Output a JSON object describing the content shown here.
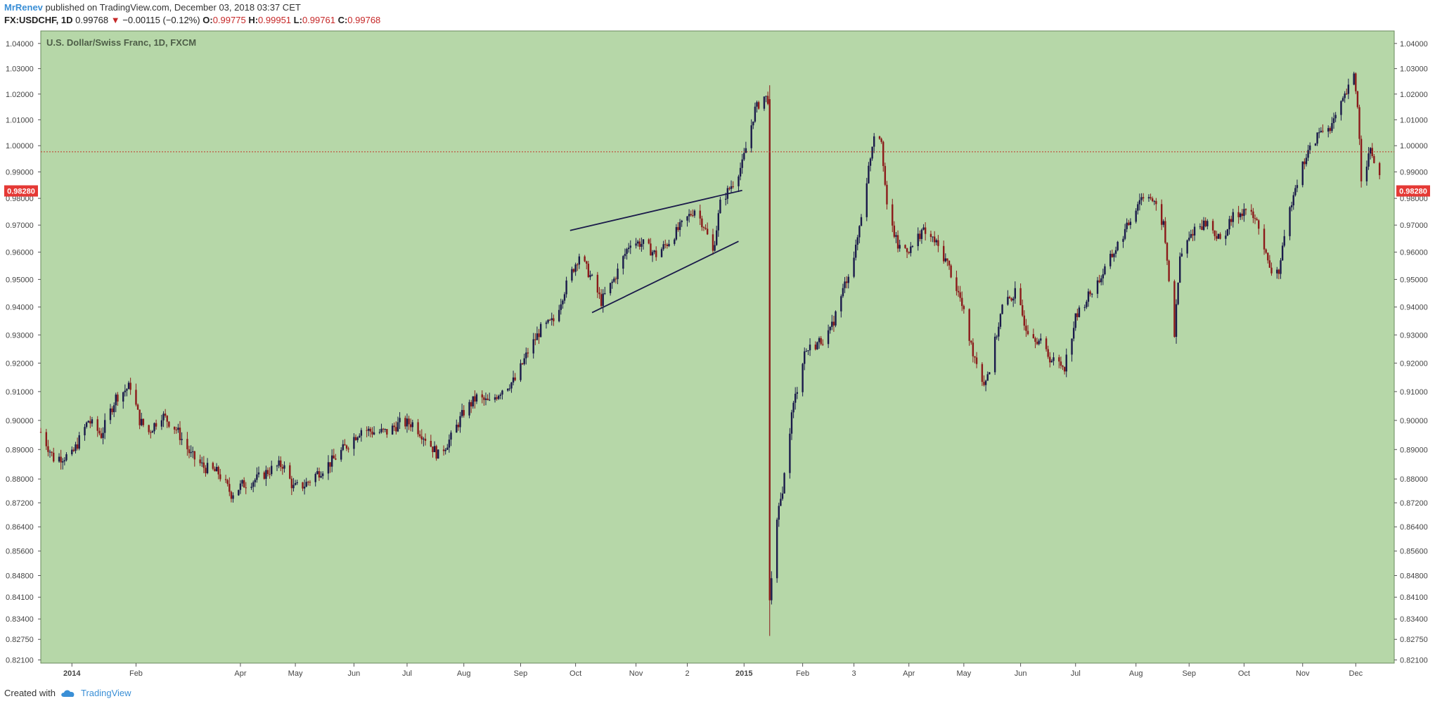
{
  "header": {
    "author": "MrRenev",
    "published": "published on TradingView.com, December 03, 2018 03:37 CET",
    "symbol": "FX:USDCHF, 1D",
    "last": "0.99768",
    "change": "−0.00115 (−0.12%)",
    "o_label": "O:",
    "o": "0.99775",
    "h_label": "H:",
    "h": "0.99951",
    "l_label": "L:",
    "l": "0.99761",
    "c_label": "C:",
    "c": "0.99768"
  },
  "footer": {
    "created_with": "Created with",
    "brand": "TradingView"
  },
  "colors": {
    "bg": "#b6d7a8",
    "up": "#1a1a4a",
    "down": "#8b1a1a",
    "priceline": "#c0392b",
    "badge": "#e53935"
  },
  "chart_data": {
    "type": "candlestick",
    "title": "U.S. Dollar/Swiss Franc, 1D, FXCM",
    "price_badge": "0.98280",
    "price_line": 0.99768,
    "y_ticks": [
      "0.82100",
      "0.82750",
      "0.83400",
      "0.84100",
      "0.84800",
      "0.85600",
      "0.86400",
      "0.87200",
      "0.88000",
      "0.89000",
      "0.90000",
      "0.91000",
      "0.92000",
      "0.93000",
      "0.94000",
      "0.95000",
      "0.96000",
      "0.97000",
      "0.98000",
      "0.99000",
      "1.00000",
      "1.01000",
      "1.02000",
      "1.03000",
      "1.04000"
    ],
    "y_scale": "log",
    "x_ticks": [
      "2014",
      "Feb",
      "Apr",
      "May",
      "Jun",
      "Jul",
      "Aug",
      "Sep",
      "Oct",
      "Nov",
      "2",
      "2015",
      "Feb",
      "3",
      "Apr",
      "May",
      "Jun",
      "Jul",
      "Aug",
      "Sep",
      "Oct",
      "Nov",
      "Dec"
    ],
    "x_tick_dates": [
      "2013-12-30",
      "2014-02-03",
      "2014-04-01",
      "2014-05-01",
      "2014-06-02",
      "2014-07-01",
      "2014-08-01",
      "2014-09-01",
      "2014-10-01",
      "2014-11-03",
      "2014-12-01",
      "2015-01-01",
      "2015-02-02",
      "2015-03-02",
      "2015-04-01",
      "2015-05-01",
      "2015-06-01",
      "2015-07-01",
      "2015-08-03",
      "2015-09-01",
      "2015-10-01",
      "2015-11-02",
      "2015-12-01"
    ],
    "x_range": [
      "2013-12-13",
      "2015-12-22"
    ],
    "ylim": [
      0.82,
      1.045
    ],
    "path": [
      [
        "2013-12-13",
        0.896
      ],
      [
        "2013-12-20",
        0.887
      ],
      [
        "2013-12-30",
        0.888
      ],
      [
        "2014-01-08",
        0.9
      ],
      [
        "2014-01-15",
        0.895
      ],
      [
        "2014-01-23",
        0.908
      ],
      [
        "2014-01-31",
        0.912
      ],
      [
        "2014-02-05",
        0.9
      ],
      [
        "2014-02-10",
        0.896
      ],
      [
        "2014-02-17",
        0.902
      ],
      [
        "2014-02-25",
        0.897
      ],
      [
        "2014-03-05",
        0.888
      ],
      [
        "2014-03-12",
        0.884
      ],
      [
        "2014-03-20",
        0.882
      ],
      [
        "2014-03-27",
        0.875
      ],
      [
        "2014-04-02",
        0.878
      ],
      [
        "2014-04-10",
        0.88
      ],
      [
        "2014-04-17",
        0.883
      ],
      [
        "2014-04-24",
        0.885
      ],
      [
        "2014-04-30",
        0.877
      ],
      [
        "2014-05-06",
        0.878
      ],
      [
        "2014-05-13",
        0.882
      ],
      [
        "2014-05-21",
        0.886
      ],
      [
        "2014-05-30",
        0.892
      ],
      [
        "2014-06-06",
        0.897
      ],
      [
        "2014-06-13",
        0.896
      ],
      [
        "2014-06-20",
        0.896
      ],
      [
        "2014-06-27",
        0.899
      ],
      [
        "2014-07-04",
        0.899
      ],
      [
        "2014-07-11",
        0.894
      ],
      [
        "2014-07-18",
        0.888
      ],
      [
        "2014-07-25",
        0.894
      ],
      [
        "2014-08-01",
        0.903
      ],
      [
        "2014-08-08",
        0.908
      ],
      [
        "2014-08-15",
        0.906
      ],
      [
        "2014-08-22",
        0.911
      ],
      [
        "2014-08-29",
        0.914
      ],
      [
        "2014-09-05",
        0.924
      ],
      [
        "2014-09-12",
        0.932
      ],
      [
        "2014-09-19",
        0.935
      ],
      [
        "2014-09-26",
        0.948
      ],
      [
        "2014-10-03",
        0.959
      ],
      [
        "2014-10-10",
        0.95
      ],
      [
        "2014-10-15",
        0.942
      ],
      [
        "2014-10-22",
        0.95
      ],
      [
        "2014-10-31",
        0.964
      ],
      [
        "2014-11-07",
        0.963
      ],
      [
        "2014-11-14",
        0.959
      ],
      [
        "2014-11-21",
        0.964
      ],
      [
        "2014-11-28",
        0.97
      ],
      [
        "2014-12-05",
        0.976
      ],
      [
        "2014-12-10",
        0.97
      ],
      [
        "2014-12-15",
        0.96
      ],
      [
        "2014-12-19",
        0.978
      ],
      [
        "2014-12-26",
        0.986
      ],
      [
        "2014-12-31",
        0.993
      ],
      [
        "2015-01-02",
        0.999
      ],
      [
        "2015-01-07",
        1.014
      ],
      [
        "2015-01-12",
        1.019
      ],
      [
        "2015-01-14",
        1.018
      ],
      [
        "2015-01-15",
        0.84
      ],
      [
        "2015-01-19",
        0.865
      ],
      [
        "2015-01-23",
        0.881
      ],
      [
        "2015-01-27",
        0.902
      ],
      [
        "2015-02-03",
        0.924
      ],
      [
        "2015-02-10",
        0.927
      ],
      [
        "2015-02-17",
        0.931
      ],
      [
        "2015-02-24",
        0.946
      ],
      [
        "2015-03-03",
        0.961
      ],
      [
        "2015-03-09",
        0.987
      ],
      [
        "2015-03-13",
        1.005
      ],
      [
        "2015-03-17",
        1.003
      ],
      [
        "2015-03-20",
        0.976
      ],
      [
        "2015-03-26",
        0.962
      ],
      [
        "2015-04-02",
        0.961
      ],
      [
        "2015-04-08",
        0.968
      ],
      [
        "2015-04-15",
        0.964
      ],
      [
        "2015-04-22",
        0.956
      ],
      [
        "2015-04-29",
        0.943
      ],
      [
        "2015-05-05",
        0.926
      ],
      [
        "2015-05-12",
        0.913
      ],
      [
        "2015-05-15",
        0.918
      ],
      [
        "2015-05-22",
        0.94
      ],
      [
        "2015-05-29",
        0.945
      ],
      [
        "2015-06-04",
        0.933
      ],
      [
        "2015-06-11",
        0.928
      ],
      [
        "2015-06-18",
        0.921
      ],
      [
        "2015-06-25",
        0.919
      ],
      [
        "2015-07-01",
        0.936
      ],
      [
        "2015-07-08",
        0.944
      ],
      [
        "2015-07-15",
        0.951
      ],
      [
        "2015-07-22",
        0.96
      ],
      [
        "2015-07-29",
        0.969
      ],
      [
        "2015-08-05",
        0.98
      ],
      [
        "2015-08-10",
        0.982
      ],
      [
        "2015-08-18",
        0.97
      ],
      [
        "2015-08-24",
        0.93
      ],
      [
        "2015-08-27",
        0.958
      ],
      [
        "2015-09-04",
        0.969
      ],
      [
        "2015-09-11",
        0.971
      ],
      [
        "2015-09-18",
        0.964
      ],
      [
        "2015-09-25",
        0.973
      ],
      [
        "2015-10-02",
        0.976
      ],
      [
        "2015-10-09",
        0.97
      ],
      [
        "2015-10-15",
        0.953
      ],
      [
        "2015-10-20",
        0.953
      ],
      [
        "2015-10-28",
        0.983
      ],
      [
        "2015-11-04",
        0.996
      ],
      [
        "2015-11-11",
        1.005
      ],
      [
        "2015-11-18",
        1.008
      ],
      [
        "2015-11-24",
        1.017
      ],
      [
        "2015-11-30",
        1.027
      ],
      [
        "2015-12-02",
        1.016
      ],
      [
        "2015-12-04",
        0.988
      ],
      [
        "2015-12-09",
        0.998
      ],
      [
        "2015-12-14",
        0.988
      ]
    ],
    "trendlines": [
      {
        "from": [
          "2014-09-28",
          0.968
        ],
        "to": [
          "2014-12-31",
          0.983
        ]
      },
      {
        "from": [
          "2014-10-10",
          0.938
        ],
        "to": [
          "2014-12-29",
          0.964
        ]
      }
    ]
  }
}
